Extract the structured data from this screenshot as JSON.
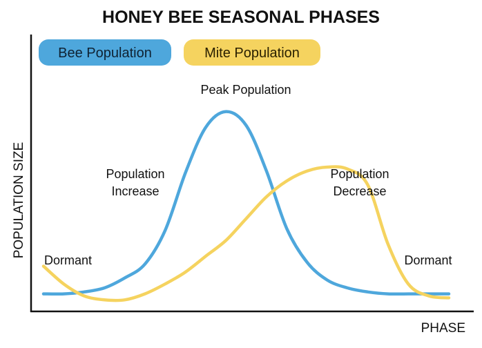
{
  "chart_data": {
    "type": "line",
    "title": "HONEY BEE SEASONAL PHASES",
    "xlabel": "PHASE",
    "ylabel": "POPULATION SIZE",
    "grid": false,
    "legend_placement": "top-left",
    "x_ticks": "none",
    "y_ticks": "none",
    "xlim": [
      0,
      100
    ],
    "ylim": [
      0,
      100
    ],
    "series": [
      {
        "name": "Bee Population",
        "color": "#4ea7dc",
        "x": [
          0,
          5,
          10,
          15,
          20,
          25,
          30,
          35,
          40,
          45,
          50,
          55,
          60,
          65,
          70,
          75,
          80,
          85,
          90,
          95,
          100
        ],
        "y": [
          5,
          5,
          6,
          8,
          13,
          20,
          37,
          66,
          89,
          97,
          90,
          67,
          38,
          21,
          12,
          8,
          6,
          5,
          5,
          5,
          5
        ]
      },
      {
        "name": "Mite Population",
        "color": "#f5d35f",
        "x": [
          0,
          5,
          10,
          15,
          20,
          25,
          30,
          35,
          40,
          45,
          50,
          55,
          60,
          65,
          70,
          75,
          80,
          85,
          90,
          95,
          100
        ],
        "y": [
          19,
          10,
          4,
          2,
          2,
          5,
          10,
          16,
          24,
          32,
          43,
          54,
          62,
          67,
          69,
          68,
          60,
          30,
          10,
          4,
          3
        ]
      }
    ],
    "annotations": [
      {
        "id": "dormant_left",
        "lines": [
          "Dormant"
        ]
      },
      {
        "id": "population_increase",
        "lines": [
          "Population",
          "Increase"
        ]
      },
      {
        "id": "peak_population",
        "lines": [
          "Peak Population"
        ]
      },
      {
        "id": "population_decrease",
        "lines": [
          "Population",
          "Decrease"
        ]
      },
      {
        "id": "dormant_right",
        "lines": [
          "Dormant"
        ]
      }
    ]
  }
}
